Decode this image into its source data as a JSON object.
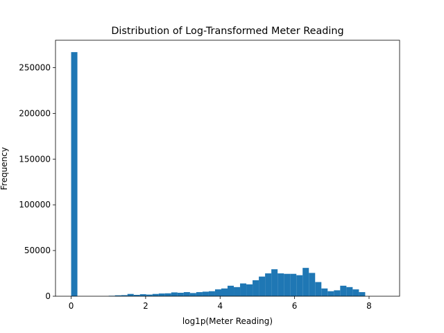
{
  "chart_data": {
    "type": "bar",
    "title": "Distribution of Log-Transformed Meter Reading",
    "xlabel": "log1p(Meter Reading)",
    "ylabel": "Frequency",
    "xlim": [
      -0.42,
      8.82
    ],
    "ylim": [
      0,
      280000
    ],
    "xticks": [
      0,
      2,
      4,
      6,
      8
    ],
    "xtick_labels": [
      "0",
      "2",
      "4",
      "6",
      "8"
    ],
    "yticks": [
      0,
      50000,
      100000,
      150000,
      200000,
      250000
    ],
    "ytick_labels": [
      "0",
      "50000",
      "100000",
      "150000",
      "200000",
      "250000"
    ],
    "bin_width": 0.168,
    "bin_edges_start": 0,
    "values": [
      267000,
      0,
      0,
      0,
      0,
      0,
      500,
      1000,
      1200,
      2500,
      1500,
      2200,
      1800,
      2500,
      3000,
      3200,
      4200,
      3800,
      4500,
      3500,
      4500,
      5000,
      5500,
      7500,
      8500,
      11500,
      10000,
      14000,
      13000,
      17500,
      21500,
      25000,
      29500,
      25000,
      24500,
      24500,
      23000,
      31000,
      25500,
      15500,
      8500,
      5500,
      6500,
      11500,
      10000,
      7500,
      4500,
      0,
      0,
      0
    ],
    "colors": {
      "bar": "#1f77b4",
      "axes": "#000000",
      "background": "#ffffff"
    },
    "grid": false,
    "legend": "none"
  }
}
